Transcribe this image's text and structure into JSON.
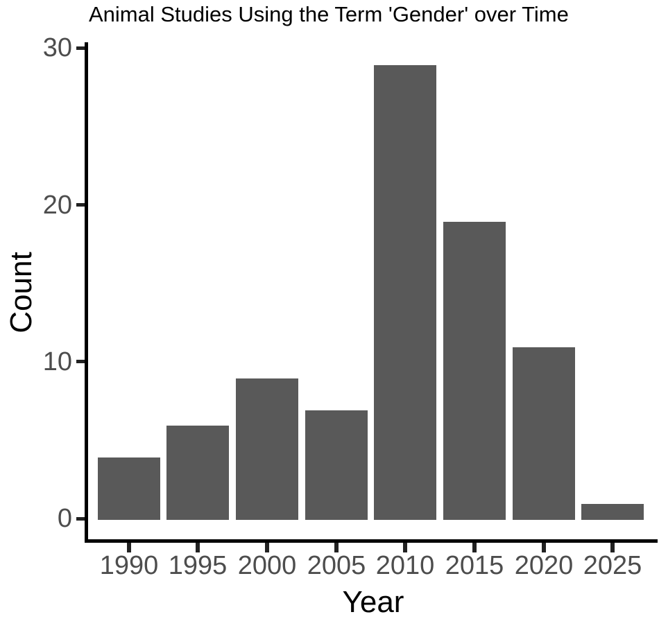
{
  "title": "Animal Studies Using the Term 'Gender' over Time",
  "chart_data": {
    "type": "bar",
    "title": "Animal Studies Using the Term 'Gender' over Time",
    "xlabel": "Year",
    "ylabel": "Count",
    "categories": [
      "1990",
      "1995",
      "2000",
      "2005",
      "2010",
      "2015",
      "2020",
      "2025"
    ],
    "values": [
      4,
      6,
      9,
      7,
      29,
      19,
      11,
      1
    ],
    "ylim": [
      0,
      30
    ],
    "yticks": [
      0,
      10,
      20,
      30
    ],
    "bar_color": "#595959",
    "axis_text_color": "#4d4d4d",
    "axis_line_color": "#000000",
    "grid": false,
    "legend": false,
    "background": "#ffffff"
  }
}
